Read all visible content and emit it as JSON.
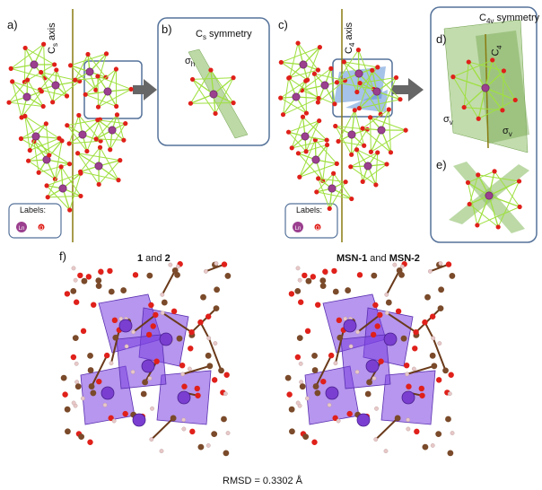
{
  "panels": {
    "a": {
      "letter": "a)",
      "axis": "C",
      "axis_sub": "s",
      "axis_rest": " axis"
    },
    "b": {
      "letter": "b)",
      "title": "C",
      "title_sub": "s",
      "title_rest": " symmetry",
      "plane": "σ",
      "plane_sub": "h"
    },
    "c": {
      "letter": "c)",
      "axis": "C",
      "axis_sub": "4",
      "axis_rest": " axis"
    },
    "d": {
      "letter": "d)",
      "title": "C",
      "title_sub": "4v",
      "title_rest": " symmetry",
      "axis": "C",
      "axis_sub": "4",
      "plane1": "σ",
      "plane1_sub": "v",
      "plane2": "σ",
      "plane2_sub": "v"
    },
    "e": {
      "letter": "e)"
    },
    "f": {
      "letter": "f)"
    }
  },
  "legend_left": {
    "title": "Labels:",
    "ln": "Ln",
    "o": "O"
  },
  "legend_right": {
    "title": "Labels:",
    "ln": "Ln",
    "o": "O"
  },
  "f_left_header": {
    "a": "1",
    "and": " and ",
    "b": "2"
  },
  "f_right_header": {
    "a": "MSN-1",
    "and": " and ",
    "b": "MSN-2"
  },
  "rmsd": "RMSD = 0.3302 Å",
  "colors": {
    "ln": "#9b3f8f",
    "oxygen": "#e0201a",
    "bond": "#9fe040",
    "axis": "#8a7a10",
    "plane": "#7faa55",
    "box": "#55729a",
    "poly": "#7a3fe0",
    "carbon": "#7a4a2a",
    "hydrogen": "#e8c8c8"
  }
}
